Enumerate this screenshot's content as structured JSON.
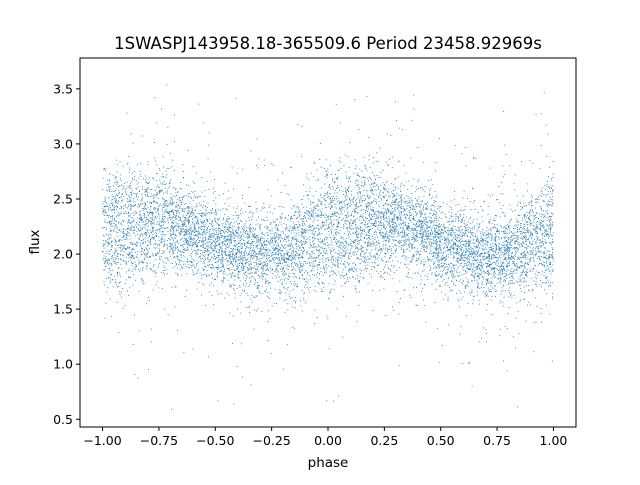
{
  "chart_data": {
    "type": "scatter",
    "title": "1SWASPJ143958.18-365509.6 Period 23458.92969s",
    "xlabel": "phase",
    "ylabel": "flux",
    "xlim": [
      -1.1,
      1.1
    ],
    "ylim": [
      0.43,
      3.78
    ],
    "xticks": [
      -1.0,
      -0.75,
      -0.5,
      -0.25,
      0.0,
      0.25,
      0.5,
      0.75,
      1.0
    ],
    "xtick_labels": [
      "−1.00",
      "−0.75",
      "−0.50",
      "−0.25",
      "0.00",
      "0.25",
      "0.50",
      "0.75",
      "1.00"
    ],
    "yticks": [
      0.5,
      1.0,
      1.5,
      2.0,
      2.5,
      3.0,
      3.5
    ],
    "ytick_labels": [
      "0.5",
      "1.0",
      "1.5",
      "2.0",
      "2.5",
      "3.0",
      "3.5"
    ],
    "grid": false,
    "marker_color": "#1f77b4",
    "series": [
      {
        "phase": [
          -1.0,
          -0.9,
          -0.8,
          -0.7,
          -0.6,
          -0.5,
          -0.4,
          -0.3,
          -0.2,
          -0.1,
          0.0,
          0.1,
          0.2,
          0.3,
          0.4,
          0.5,
          0.6,
          0.7,
          0.8,
          0.9,
          1.0
        ],
        "flux_upper_branch": [
          2.42,
          2.44,
          2.42,
          2.36,
          2.26,
          2.13,
          2.05,
          2.02,
          2.08,
          2.25,
          2.42,
          2.44,
          2.42,
          2.36,
          2.26,
          2.13,
          2.05,
          2.02,
          2.08,
          2.25,
          2.42
        ],
        "flux_lower_branch": [
          1.98,
          2.02,
          2.12,
          2.18,
          2.14,
          2.06,
          2.0,
          1.96,
          1.94,
          1.95,
          1.98,
          2.02,
          2.12,
          2.18,
          2.14,
          2.06,
          2.0,
          1.96,
          1.94,
          1.95,
          1.98
        ],
        "flux_scatter": 0.18
      }
    ]
  }
}
